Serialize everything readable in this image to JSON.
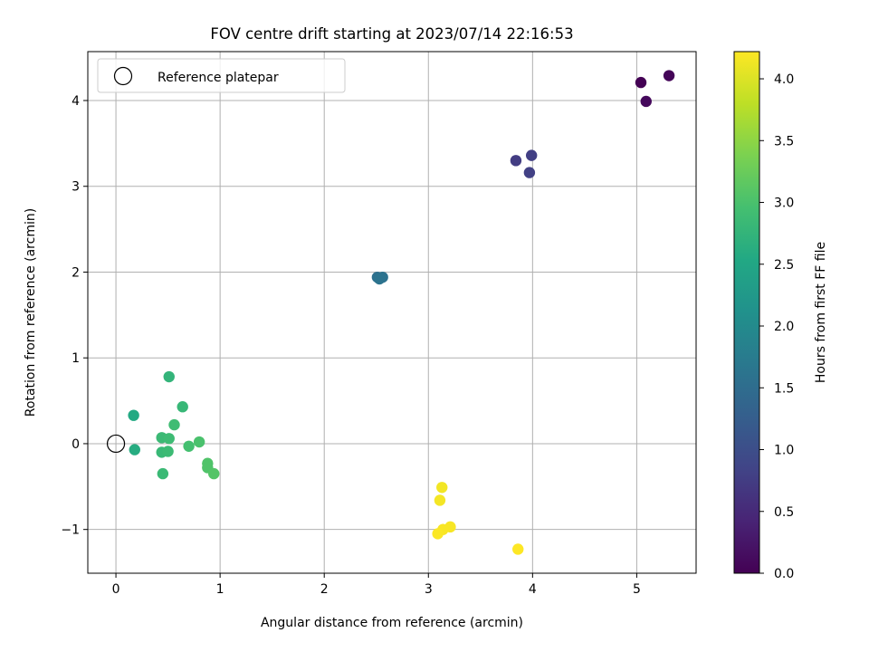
{
  "chart_data": {
    "type": "scatter",
    "title": "FOV centre drift starting at 2023/07/14 22:16:53",
    "xlabel": "Angular distance from reference (arcmin)",
    "ylabel": "Rotation from reference (arcmin)",
    "xlim": [
      -0.27,
      5.57
    ],
    "ylim": [
      -1.51,
      4.57
    ],
    "xticks": [
      0,
      1,
      2,
      3,
      4,
      5
    ],
    "yticks": [
      -1,
      0,
      1,
      2,
      3,
      4
    ],
    "xtick_labels": [
      "0",
      "1",
      "2",
      "3",
      "4",
      "5"
    ],
    "ytick_labels": [
      "−1",
      "0",
      "1",
      "2",
      "3",
      "4"
    ],
    "grid": true,
    "legend": {
      "position": "top-left",
      "label": "Reference platepar"
    },
    "reference": {
      "x": 0,
      "y": 0
    },
    "colorbar": {
      "label": "Hours from first FF file",
      "range": [
        0,
        4.22
      ],
      "ticks": [
        0.0,
        0.5,
        1.0,
        1.5,
        2.0,
        2.5,
        3.0,
        3.5,
        4.0
      ],
      "tick_labels": [
        "0.0",
        "0.5",
        "1.0",
        "1.5",
        "2.0",
        "2.5",
        "3.0",
        "3.5",
        "4.0"
      ],
      "colormap": "viridis"
    },
    "points": [
      {
        "x": 5.04,
        "y": 4.21,
        "c": 0.0
      },
      {
        "x": 5.31,
        "y": 4.29,
        "c": 0.05
      },
      {
        "x": 5.09,
        "y": 3.99,
        "c": 0.1
      },
      {
        "x": 3.84,
        "y": 3.3,
        "c": 0.75
      },
      {
        "x": 3.99,
        "y": 3.36,
        "c": 0.78
      },
      {
        "x": 3.97,
        "y": 3.16,
        "c": 0.8
      },
      {
        "x": 2.51,
        "y": 1.94,
        "c": 1.55
      },
      {
        "x": 2.56,
        "y": 1.94,
        "c": 1.58
      },
      {
        "x": 2.53,
        "y": 1.92,
        "c": 1.6
      },
      {
        "x": 0.17,
        "y": 0.33,
        "c": 2.55
      },
      {
        "x": 0.18,
        "y": -0.07,
        "c": 2.6
      },
      {
        "x": 0.51,
        "y": 0.78,
        "c": 2.75
      },
      {
        "x": 0.64,
        "y": 0.43,
        "c": 2.8
      },
      {
        "x": 0.56,
        "y": 0.22,
        "c": 2.9
      },
      {
        "x": 0.44,
        "y": 0.07,
        "c": 2.85
      },
      {
        "x": 0.51,
        "y": 0.06,
        "c": 2.88
      },
      {
        "x": 0.44,
        "y": -0.1,
        "c": 2.82
      },
      {
        "x": 0.5,
        "y": -0.09,
        "c": 2.86
      },
      {
        "x": 0.45,
        "y": -0.35,
        "c": 2.84
      },
      {
        "x": 0.7,
        "y": -0.03,
        "c": 2.95
      },
      {
        "x": 0.8,
        "y": 0.02,
        "c": 3.0
      },
      {
        "x": 0.88,
        "y": -0.23,
        "c": 3.05
      },
      {
        "x": 0.88,
        "y": -0.28,
        "c": 3.05
      },
      {
        "x": 0.94,
        "y": -0.35,
        "c": 3.08
      },
      {
        "x": 3.13,
        "y": -0.51,
        "c": 4.15
      },
      {
        "x": 3.11,
        "y": -0.66,
        "c": 4.16
      },
      {
        "x": 3.21,
        "y": -0.97,
        "c": 4.18
      },
      {
        "x": 3.14,
        "y": -1.0,
        "c": 4.19
      },
      {
        "x": 3.09,
        "y": -1.05,
        "c": 4.2
      },
      {
        "x": 3.86,
        "y": -1.23,
        "c": 4.22
      }
    ]
  }
}
